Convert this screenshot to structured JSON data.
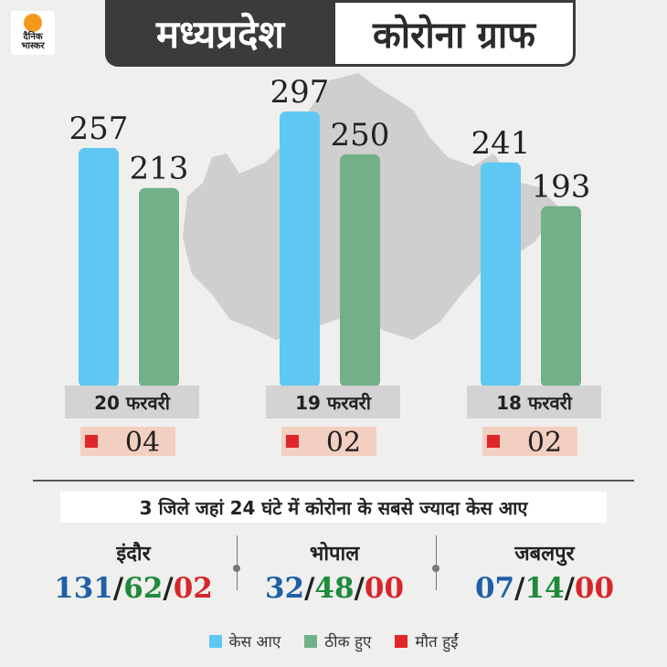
{
  "brand": {
    "logo_text": "दैनिक भास्कर"
  },
  "header": {
    "title_left": "मध्यप्रदेश",
    "title_right": "कोरोना ग्राफ"
  },
  "colors": {
    "cases": "#5ec8f2",
    "recovered": "#72b08a",
    "deaths": "#e0262a",
    "date_label_bg": "#d3d3d3",
    "death_label_bg": "#f3cfc1"
  },
  "chart_data": {
    "type": "bar",
    "categories": [
      "20 फरवरी",
      "19 फरवरी",
      "18 फरवरी"
    ],
    "series": [
      {
        "name": "केस आए",
        "values": [
          257,
          297,
          241
        ]
      },
      {
        "name": "ठीक हुए",
        "values": [
          213,
          250,
          193
        ]
      },
      {
        "name": "मौत हुईं",
        "values": [
          4,
          2,
          2
        ]
      }
    ],
    "value_labels": {
      "cases": [
        "257",
        "297",
        "241"
      ],
      "recovered": [
        "213",
        "250",
        "193"
      ],
      "deaths": [
        "04",
        "02",
        "02"
      ]
    },
    "legend_position": "bottom",
    "grid": false
  },
  "districts": {
    "headline": "3 जिले जहां 24 घंटे में कोरोना के सबसे ज्यादा केस आए",
    "items": [
      {
        "name": "इंदौर",
        "cases": "131",
        "recovered": "62",
        "deaths": "02"
      },
      {
        "name": "भोपाल",
        "cases": "32",
        "recovered": "48",
        "deaths": "00"
      },
      {
        "name": "जबलपुर",
        "cases": "07",
        "recovered": "14",
        "deaths": "00"
      }
    ],
    "stat_colors": {
      "cases": "#1e5fa8",
      "recovered": "#1f8a3c",
      "deaths": "#d7262b"
    }
  },
  "legend": {
    "cases": "केस आए",
    "recovered": "ठीक हुए",
    "deaths": "मौत हुईं"
  }
}
